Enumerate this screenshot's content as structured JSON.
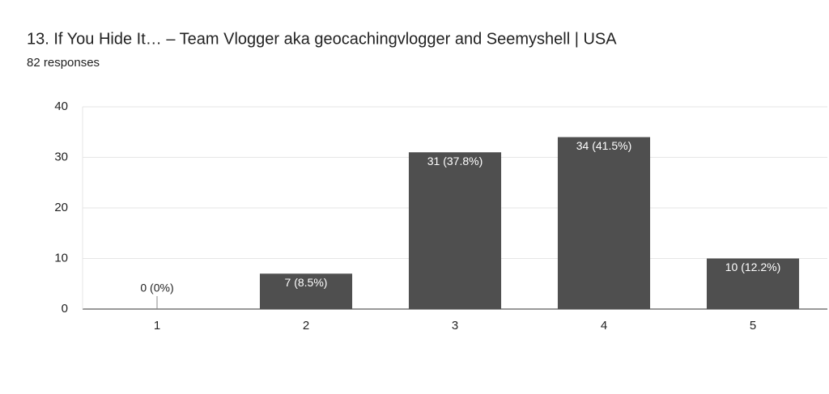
{
  "chart_data": {
    "type": "bar",
    "title": "13. If You Hide It… – Team Vlogger aka geocachingvlogger and Seemyshell | USA",
    "subtitle": "82 responses",
    "categories": [
      "1",
      "2",
      "3",
      "4",
      "5"
    ],
    "values": [
      0,
      7,
      31,
      34,
      10
    ],
    "value_labels": [
      "0 (0%)",
      "7 (8.5%)",
      "31 (37.8%)",
      "34 (41.5%)",
      "10 (12.2%)"
    ],
    "color": "#4f4f4f",
    "ylim": [
      0,
      40
    ],
    "yticks": [
      0,
      10,
      20,
      30,
      40
    ],
    "grid": true
  }
}
